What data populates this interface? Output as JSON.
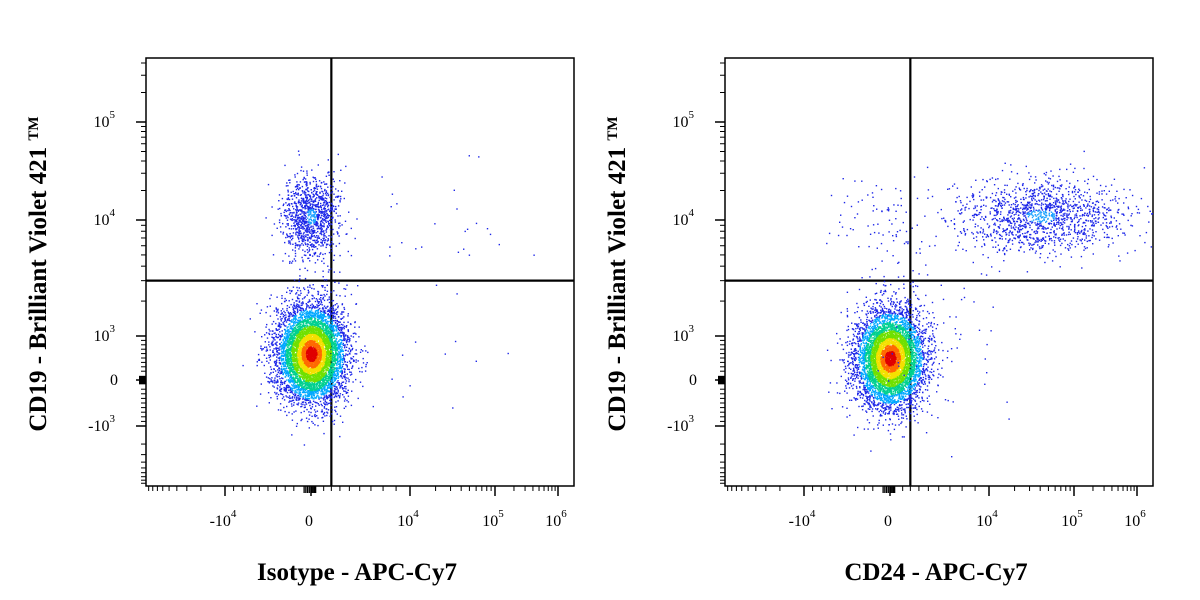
{
  "chart_data": [
    {
      "type": "scatter",
      "title": "",
      "xlabel": "Isotype - APC-Cy7",
      "ylabel": "CD19 - Brilliant Violet 421",
      "ylabel_mark": "TM",
      "x_scale": "biexponential",
      "y_scale": "biexponential",
      "x_ticks": [
        {
          "base": "-10",
          "exp": "4",
          "value": -10000
        },
        {
          "base": "0",
          "exp": "",
          "value": 0
        },
        {
          "base": "10",
          "exp": "4",
          "value": 10000
        },
        {
          "base": "10",
          "exp": "5",
          "value": 100000
        },
        {
          "base": "10",
          "exp": "6",
          "value": 1000000
        }
      ],
      "y_ticks": [
        {
          "base": "10",
          "exp": "5",
          "value": 100000
        },
        {
          "base": "10",
          "exp": "4",
          "value": 10000
        },
        {
          "base": "10",
          "exp": "3",
          "value": 1000
        },
        {
          "base": "0",
          "exp": "",
          "value": 0
        },
        {
          "base": "-10",
          "exp": "3",
          "value": -1000
        }
      ],
      "gate_x": 3000,
      "gate_y": 3000,
      "populations": [
        {
          "x_center": 0,
          "y_center": 600,
          "count": 6500,
          "density": "high"
        },
        {
          "x_center": 0,
          "y_center": 11000,
          "count": 1100,
          "density": "medium"
        },
        {
          "x_center": 20000,
          "y_center": 8000,
          "count": 25,
          "density": "sparse"
        },
        {
          "x_center": 40000,
          "y_center": 300,
          "count": 12,
          "density": "sparse"
        }
      ]
    },
    {
      "type": "scatter",
      "title": "",
      "xlabel": "CD24 - APC-Cy7",
      "ylabel": "CD19 - Brilliant Violet 421",
      "ylabel_mark": "TM",
      "x_scale": "biexponential",
      "y_scale": "biexponential",
      "x_ticks": [
        {
          "base": "-10",
          "exp": "4",
          "value": -10000
        },
        {
          "base": "0",
          "exp": "",
          "value": 0
        },
        {
          "base": "10",
          "exp": "4",
          "value": 10000
        },
        {
          "base": "10",
          "exp": "5",
          "value": 100000
        },
        {
          "base": "10",
          "exp": "6",
          "value": 1000000
        }
      ],
      "y_ticks": [
        {
          "base": "10",
          "exp": "5",
          "value": 100000
        },
        {
          "base": "10",
          "exp": "4",
          "value": 10000
        },
        {
          "base": "10",
          "exp": "3",
          "value": 1000
        },
        {
          "base": "0",
          "exp": "",
          "value": 0
        },
        {
          "base": "-10",
          "exp": "3",
          "value": -1000
        }
      ],
      "gate_x": 3000,
      "gate_y": 3000,
      "populations": [
        {
          "x_center": 0,
          "y_center": 500,
          "count": 6000,
          "density": "high"
        },
        {
          "x_center": 40000,
          "y_center": 11000,
          "count": 1400,
          "density": "medium"
        },
        {
          "x_center": -300,
          "y_center": 9000,
          "count": 90,
          "density": "sparse"
        },
        {
          "x_center": 5000,
          "y_center": 1000,
          "count": 60,
          "density": "sparse"
        }
      ]
    }
  ]
}
